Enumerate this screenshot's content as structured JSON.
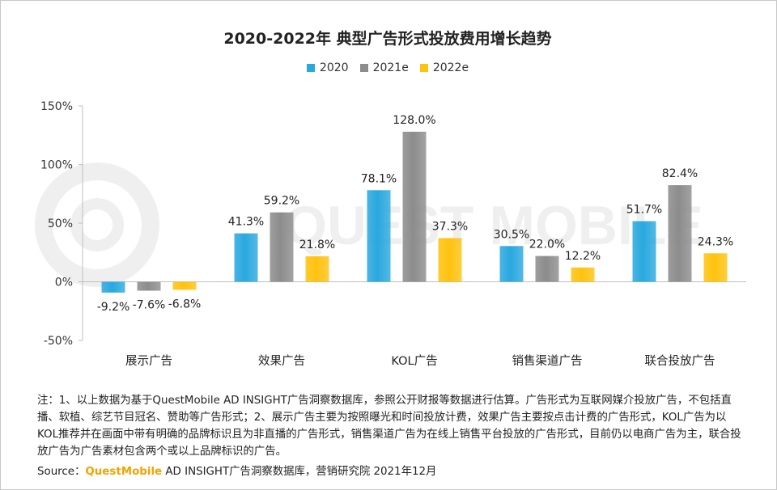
{
  "title": "2020-2022年 典型广告形式投放费用增长趋势",
  "watermark": "QUEST MOBILE",
  "colors": {
    "series_2020": "#29a8df",
    "series_2021e": "#8c8c8c",
    "series_2022e": "#ffc20e",
    "brand": "#f0a400"
  },
  "chart_data": {
    "type": "bar",
    "categories": [
      "展示广告",
      "效果广告",
      "KOL广告",
      "销售渠道广告",
      "联合投放广告"
    ],
    "series": [
      {
        "name": "2020",
        "values": [
          -9.2,
          41.3,
          78.1,
          30.5,
          51.7
        ]
      },
      {
        "name": "2021e",
        "values": [
          -7.6,
          59.2,
          128.0,
          22.0,
          82.4
        ]
      },
      {
        "name": "2022e",
        "values": [
          -6.8,
          21.8,
          37.3,
          12.2,
          24.3
        ]
      }
    ],
    "data_labels": [
      [
        "-9.2%",
        "41.3%",
        "78.1%",
        "30.5%",
        "51.7%"
      ],
      [
        "-7.6%",
        "59.2%",
        "128.0%",
        "22.0%",
        "82.4%"
      ],
      [
        "-6.8%",
        "21.8%",
        "37.3%",
        "12.2%",
        "24.3%"
      ]
    ],
    "yticks": [
      150,
      100,
      50,
      0,
      -50
    ],
    "ytick_labels": [
      "150%",
      "100%",
      "50%",
      "0%",
      "-50%"
    ],
    "ylim": [
      -50,
      150
    ],
    "legend_position": "top-center",
    "grid": false
  },
  "note": "注：1、以上数据为基于QuestMobile AD INSIGHT广告洞察数据库，参照公开财报等数据进行估算。广告形式为互联网媒介投放广告，不包括直播、软植、综艺节目冠名、赞助等广告形式；2、展示广告主要为按照曝光和时间投放计费，效果广告主要按点击计费的广告形式，KOL广告为以KOL推荐并在画面中带有明确的品牌标识且为非直播的广告形式，销售渠道广告为在线上销售平台投放的广告形式，目前仍以电商广告为主，联合投放广告为广告素材包含两个或以上品牌标识的广告。",
  "source": {
    "prefix": "Source：",
    "brand": "QuestMobile",
    "suffix": " AD INSIGHT广告洞察数据库，营销研究院 2021年12月"
  }
}
